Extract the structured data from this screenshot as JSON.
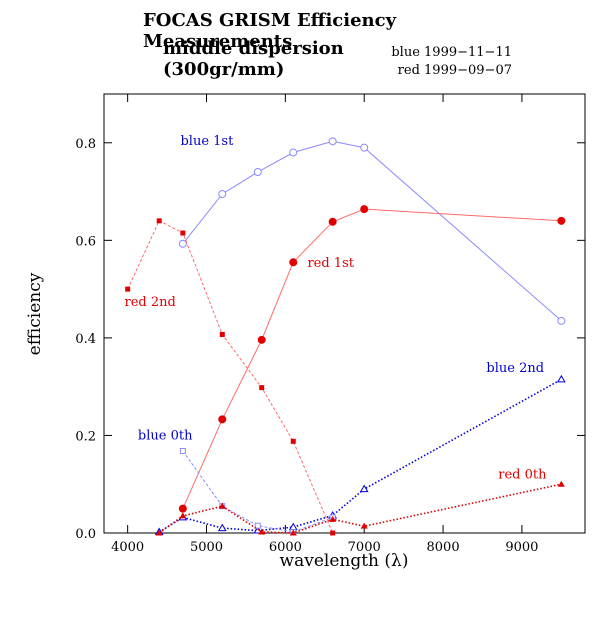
{
  "header": {
    "title": "FOCAS GRISM Efficiency Measurements",
    "subtitle": "middle dispersion (300gr/mm)",
    "dates": [
      "blue 1999−11−11",
      "red 1999−09−07"
    ]
  },
  "chart_data": {
    "type": "line",
    "xlabel": "wavelength (λ)",
    "ylabel": "efficiency",
    "xlim": [
      3700,
      9800
    ],
    "ylim": [
      0,
      0.9
    ],
    "xticks": [
      4000,
      5000,
      6000,
      7000,
      8000,
      9000
    ],
    "yticks": [
      0,
      0.2,
      0.4,
      0.6,
      0.8
    ],
    "grid": false,
    "legend": "none",
    "series": [
      {
        "label": "blue 1st",
        "color": "#8a8aff",
        "label_color": "#0000cc",
        "marker": "open-circle",
        "line": "solid",
        "label_at": [
          4670,
          0.795
        ],
        "x": [
          4700,
          5200,
          5650,
          6100,
          6600,
          7000,
          9500
        ],
        "y": [
          0.593,
          0.695,
          0.74,
          0.78,
          0.803,
          0.79,
          0.435
        ]
      },
      {
        "label": "red 1st",
        "color": "#ff6b6b",
        "label_color": "#dd0000",
        "marker": "filled-circle",
        "line": "solid",
        "label_at": [
          6280,
          0.545
        ],
        "x": [
          4700,
          5200,
          5700,
          6100,
          6600,
          7000,
          9500
        ],
        "y": [
          0.05,
          0.233,
          0.396,
          0.555,
          0.638,
          0.664,
          0.64
        ]
      },
      {
        "label": "red 2nd",
        "color": "#ff6b6b",
        "label_color": "#dd0000",
        "marker": "filled-square",
        "line": "dashed",
        "label_at": [
          3960,
          0.465
        ],
        "x": [
          4000,
          4400,
          4700,
          5200,
          5700,
          6100,
          6600
        ],
        "y": [
          0.5,
          0.64,
          0.615,
          0.407,
          0.298,
          0.188,
          0.0
        ]
      },
      {
        "label": "blue 2nd",
        "color": "#0000dd",
        "label_color": "#0000cc",
        "marker": "open-triangle",
        "line": "dotted",
        "label_at": [
          8550,
          0.33
        ],
        "x": [
          4400,
          4700,
          5200,
          5650,
          6100,
          6600,
          7000,
          9500
        ],
        "y": [
          0.002,
          0.032,
          0.01,
          0.005,
          0.012,
          0.036,
          0.09,
          0.315
        ]
      },
      {
        "label": "blue 0th",
        "color": "#8a8aff",
        "label_color": "#0000cc",
        "marker": "open-square",
        "line": "dashed",
        "label_at": [
          4130,
          0.192
        ],
        "x": [
          4700,
          5200,
          5650,
          6100,
          6600
        ],
        "y": [
          0.168,
          0.055,
          0.015,
          0.002,
          0.032
        ]
      },
      {
        "label": "red 0th",
        "color": "#dd0000",
        "label_color": "#dd0000",
        "marker": "filled-triangle",
        "line": "dotted",
        "label_at": [
          8700,
          0.112
        ],
        "x": [
          4400,
          4700,
          5200,
          5700,
          6100,
          6600,
          7000,
          9500
        ],
        "y": [
          0.0,
          0.035,
          0.055,
          0.002,
          0.0,
          0.028,
          0.014,
          0.1
        ]
      }
    ]
  }
}
